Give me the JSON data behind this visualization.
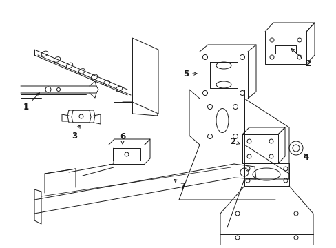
{
  "background_color": "#ffffff",
  "fig_width": 4.89,
  "fig_height": 3.6,
  "dpi": 100,
  "line_color": "#1a1a1a",
  "line_width": 0.7,
  "label_fontsize": 8.5
}
